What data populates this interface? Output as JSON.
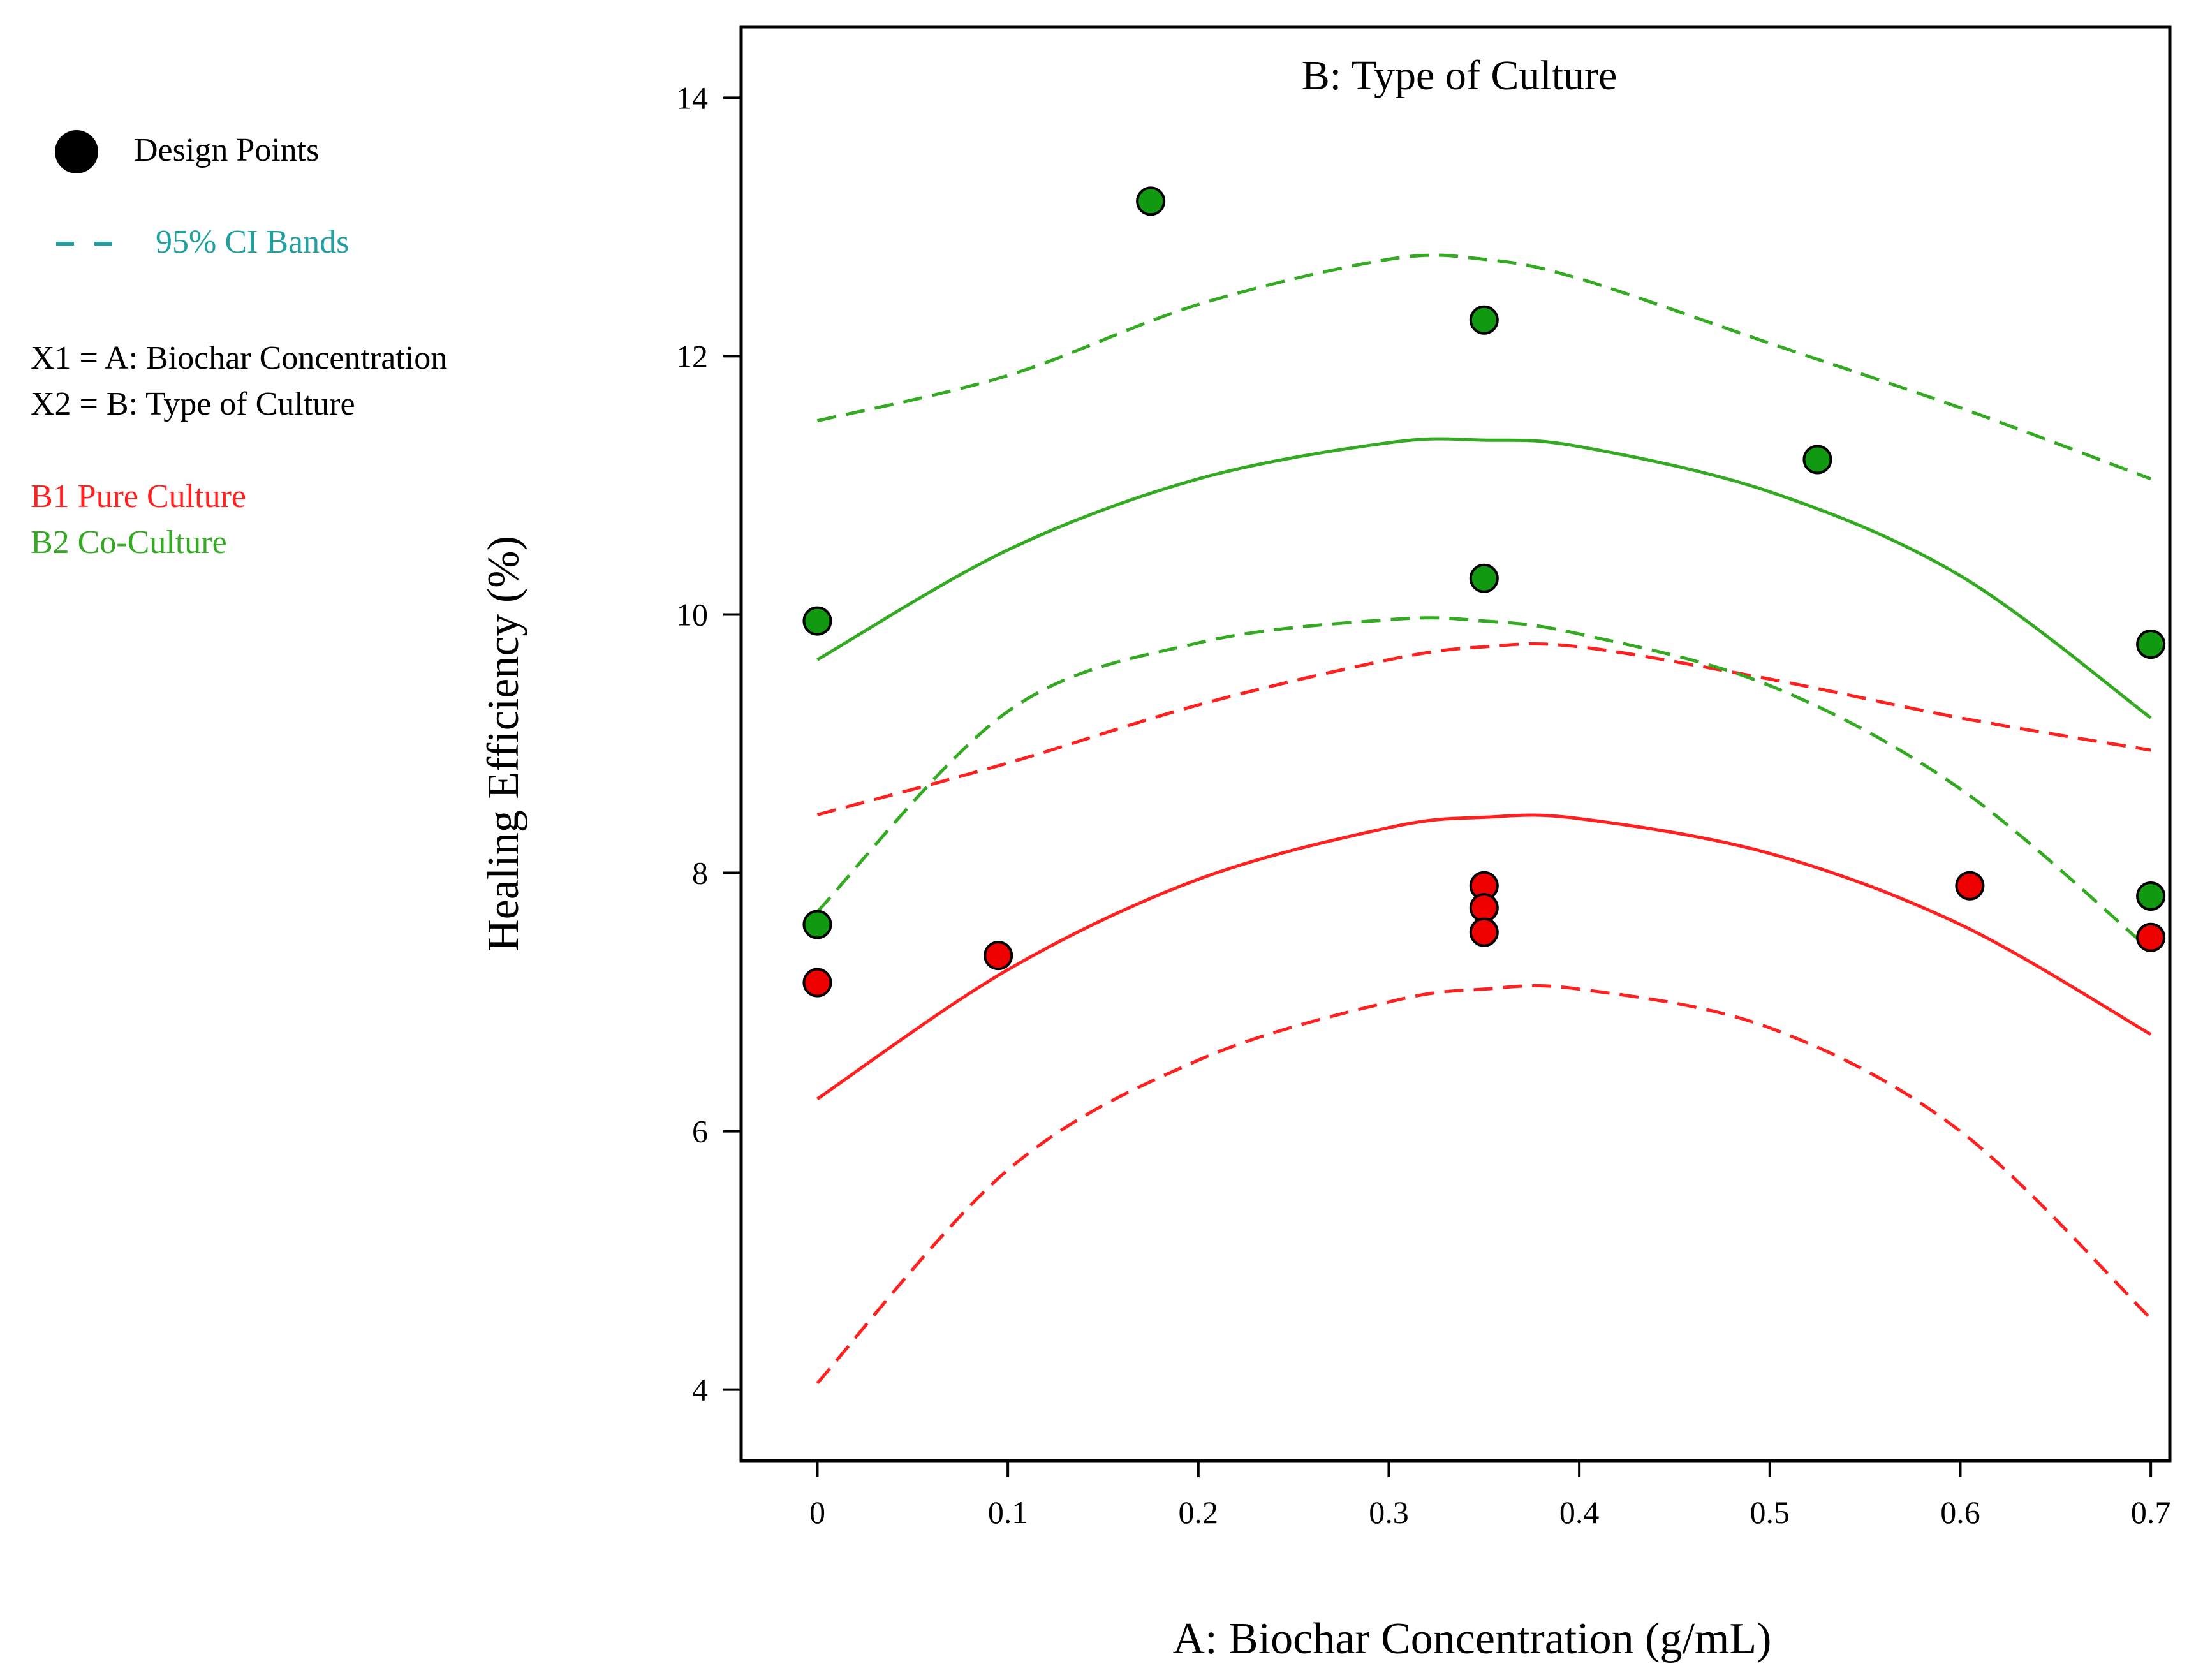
{
  "legend": {
    "design_points_label": "Design Points",
    "ci_bands_label": "95% CI Bands",
    "x1_label": "X1 = A: Biochar Concentration",
    "x2_label": "X2 = B: Type of Culture",
    "b1_label": "B1 Pure Culture",
    "b2_label": "B2 Co-Culture"
  },
  "colors": {
    "pure": "#ff2020",
    "co": "#33aa22",
    "ci_legend": "#20a0a0",
    "point_pure": "#ee0000",
    "point_co": "#119911",
    "axis": "#000000"
  },
  "chart_data": {
    "type": "line",
    "title": "B: Type of Culture",
    "xlabel": "A: Biochar Concentration (g/mL)",
    "ylabel": "Healing Efficiency (%)",
    "xlim": [
      -0.04,
      0.71
    ],
    "ylim": [
      3.45,
      14.55
    ],
    "xticks": [
      0,
      0.1,
      0.2,
      0.3,
      0.4,
      0.5,
      0.6,
      0.7
    ],
    "xtick_labels": [
      "0",
      "0.1",
      "0.2",
      "0.3",
      "0.4",
      "0.5",
      "0.6",
      "0.7"
    ],
    "yticks": [
      4,
      6,
      8,
      10,
      12,
      14
    ],
    "ytick_labels": [
      "4",
      "6",
      "8",
      "10",
      "12",
      "14"
    ],
    "curves": [
      {
        "name": "B1 Pure Culture fit",
        "group": "pure",
        "style": "solid",
        "x": [
          0,
          0.1,
          0.2,
          0.3,
          0.35,
          0.4,
          0.5,
          0.6,
          0.7
        ],
        "y": [
          6.25,
          7.25,
          7.95,
          8.35,
          8.43,
          8.42,
          8.15,
          7.6,
          6.75
        ]
      },
      {
        "name": "B1 Pure Culture upper 95% CI",
        "group": "pure",
        "style": "dashed",
        "x": [
          0,
          0.1,
          0.2,
          0.3,
          0.35,
          0.4,
          0.5,
          0.6,
          0.7
        ],
        "y": [
          8.45,
          8.85,
          9.3,
          9.65,
          9.75,
          9.75,
          9.5,
          9.2,
          8.95
        ]
      },
      {
        "name": "B1 Pure Culture lower 95% CI",
        "group": "pure",
        "style": "dashed",
        "x": [
          0,
          0.1,
          0.2,
          0.3,
          0.35,
          0.4,
          0.5,
          0.6,
          0.7
        ],
        "y": [
          4.05,
          5.7,
          6.55,
          7.0,
          7.1,
          7.1,
          6.8,
          6.0,
          4.55
        ]
      },
      {
        "name": "B2 Co-Culture fit",
        "group": "co",
        "style": "solid",
        "x": [
          0,
          0.1,
          0.2,
          0.3,
          0.35,
          0.4,
          0.5,
          0.6,
          0.7
        ],
        "y": [
          9.65,
          10.5,
          11.05,
          11.33,
          11.35,
          11.3,
          10.95,
          10.3,
          9.2
        ]
      },
      {
        "name": "B2 Co-Culture upper 95% CI",
        "group": "co",
        "style": "dashed",
        "x": [
          0,
          0.1,
          0.2,
          0.3,
          0.35,
          0.4,
          0.5,
          0.6,
          0.7
        ],
        "y": [
          11.5,
          11.85,
          12.4,
          12.75,
          12.75,
          12.6,
          12.1,
          11.6,
          11.05
        ]
      },
      {
        "name": "B2 Co-Culture lower 95% CI",
        "group": "co",
        "style": "dashed",
        "x": [
          0,
          0.1,
          0.2,
          0.3,
          0.35,
          0.4,
          0.5,
          0.6,
          0.7
        ],
        "y": [
          7.7,
          9.25,
          9.78,
          9.96,
          9.95,
          9.85,
          9.45,
          8.65,
          7.4
        ]
      }
    ],
    "points": [
      {
        "group": "co",
        "x": 0,
        "y": 9.95
      },
      {
        "group": "co",
        "x": 0,
        "y": 7.6
      },
      {
        "group": "co",
        "x": 0.175,
        "y": 13.2
      },
      {
        "group": "co",
        "x": 0.35,
        "y": 12.28
      },
      {
        "group": "co",
        "x": 0.35,
        "y": 10.28
      },
      {
        "group": "co",
        "x": 0.525,
        "y": 11.2
      },
      {
        "group": "co",
        "x": 0.7,
        "y": 9.77
      },
      {
        "group": "co",
        "x": 0.7,
        "y": 7.82
      },
      {
        "group": "pure",
        "x": 0,
        "y": 7.15
      },
      {
        "group": "pure",
        "x": 0.095,
        "y": 7.36
      },
      {
        "group": "pure",
        "x": 0.35,
        "y": 7.9
      },
      {
        "group": "pure",
        "x": 0.35,
        "y": 7.73
      },
      {
        "group": "pure",
        "x": 0.35,
        "y": 7.54
      },
      {
        "group": "pure",
        "x": 0.605,
        "y": 7.9
      },
      {
        "group": "pure",
        "x": 0.7,
        "y": 7.5
      }
    ]
  }
}
